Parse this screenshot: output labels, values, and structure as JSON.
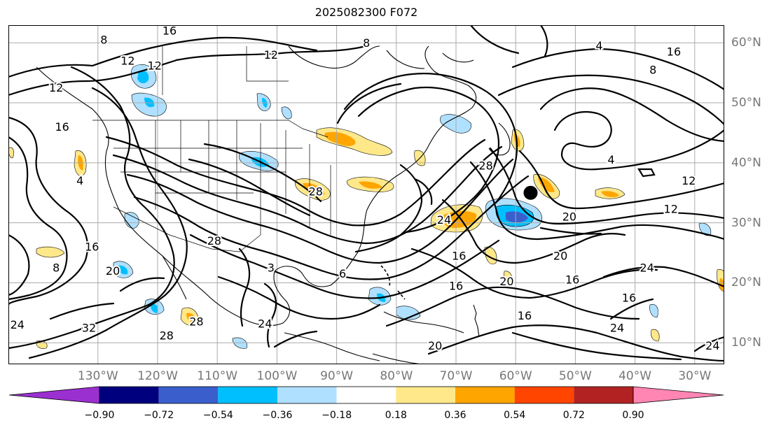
{
  "title": "2025082300 F072",
  "lon_labels": [
    {
      "text": "130°W",
      "lon": -130
    },
    {
      "text": "120°W",
      "lon": -120
    },
    {
      "text": "110°W",
      "lon": -110
    },
    {
      "text": "100°W",
      "lon": -100
    },
    {
      "text": "90°W",
      "lon": -90
    },
    {
      "text": "80°W",
      "lon": -80
    },
    {
      "text": "70°W",
      "lon": -70
    },
    {
      "text": "60°W",
      "lon": -60
    },
    {
      "text": "50°W",
      "lon": -50
    },
    {
      "text": "40°W",
      "lon": -40
    },
    {
      "text": "30°W",
      "lon": -30
    }
  ],
  "lat_labels": [
    {
      "text": "60°N",
      "lat": 60
    },
    {
      "text": "50°N",
      "lat": 50
    },
    {
      "text": "40°N",
      "lat": 40
    },
    {
      "text": "30°N",
      "lat": 30
    },
    {
      "text": "20°N",
      "lat": 20
    },
    {
      "text": "10°N",
      "lat": 10
    }
  ],
  "colorbar": {
    "levels": [
      "−0.90",
      "−0.72",
      "−0.54",
      "−0.36",
      "−0.18",
      "0.18",
      "0.36",
      "0.54",
      "0.72",
      "0.90"
    ],
    "colors": [
      "#9b30d0",
      "#00007f",
      "#3a5fcd",
      "#00bfff",
      "#b0e0ff",
      "#ffffff",
      "#ffe88a",
      "#ffa500",
      "#ff4500",
      "#b22222",
      "#ff85b3"
    ]
  },
  "marker": {
    "lon": -57.5,
    "lat": 35.0,
    "color": "#000000"
  },
  "contour_labels": [
    {
      "text": "16",
      "lon": -118,
      "lat": 62
    },
    {
      "text": "8",
      "lon": -129,
      "lat": 60.5
    },
    {
      "text": "12",
      "lon": -125,
      "lat": 57
    },
    {
      "text": "12",
      "lon": -120.5,
      "lat": 56.2
    },
    {
      "text": "12",
      "lon": -137,
      "lat": 52.5
    },
    {
      "text": "16",
      "lon": -136,
      "lat": 46
    },
    {
      "text": "8",
      "lon": -85,
      "lat": 60
    },
    {
      "text": "12",
      "lon": -101,
      "lat": 58
    },
    {
      "text": "4",
      "lon": -46,
      "lat": 59.5
    },
    {
      "text": "16",
      "lon": -33.5,
      "lat": 58.5
    },
    {
      "text": "8",
      "lon": -37,
      "lat": 55.5
    },
    {
      "text": "4",
      "lon": -44,
      "lat": 40.5
    },
    {
      "text": "12",
      "lon": -31,
      "lat": 37
    },
    {
      "text": "12",
      "lon": -34,
      "lat": 32.3
    },
    {
      "text": "20",
      "lon": -51,
      "lat": 31
    },
    {
      "text": "28",
      "lon": -65,
      "lat": 39.5
    },
    {
      "text": "24",
      "lon": -72,
      "lat": 30.5
    },
    {
      "text": "28",
      "lon": -93.5,
      "lat": 35.2
    },
    {
      "text": "16",
      "lon": -131,
      "lat": 26
    },
    {
      "text": "20",
      "lon": -127.5,
      "lat": 22
    },
    {
      "text": "8",
      "lon": -137,
      "lat": 22.5
    },
    {
      "text": "4",
      "lon": -133,
      "lat": 37
    },
    {
      "text": "28",
      "lon": -110.5,
      "lat": 27
    },
    {
      "text": "32",
      "lon": -131.5,
      "lat": 12.5
    },
    {
      "text": "28",
      "lon": -118.5,
      "lat": 11.2
    },
    {
      "text": "24",
      "lon": -143.5,
      "lat": 13
    },
    {
      "text": "28",
      "lon": -113.5,
      "lat": 13.5
    },
    {
      "text": "16",
      "lon": -69.5,
      "lat": 24.5
    },
    {
      "text": "16",
      "lon": -70,
      "lat": 19.5
    },
    {
      "text": "20",
      "lon": -61.5,
      "lat": 20.2
    },
    {
      "text": "20",
      "lon": -52.5,
      "lat": 24.5
    },
    {
      "text": "16",
      "lon": -50.5,
      "lat": 20.5
    },
    {
      "text": "16",
      "lon": -58.5,
      "lat": 14.5
    },
    {
      "text": "24",
      "lon": -38,
      "lat": 22.5
    },
    {
      "text": "16",
      "lon": -41,
      "lat": 17.5
    },
    {
      "text": "24",
      "lon": -43,
      "lat": 12.5
    },
    {
      "text": "24",
      "lon": -27,
      "lat": 9.5
    },
    {
      "text": "20",
      "lon": -73.5,
      "lat": 9.5
    },
    {
      "text": "24",
      "lon": -102,
      "lat": 13.2
    },
    {
      "text": "6",
      "lon": -89,
      "lat": 21.5
    },
    {
      "text": "3",
      "lon": -101,
      "lat": 22.5
    }
  ]
}
